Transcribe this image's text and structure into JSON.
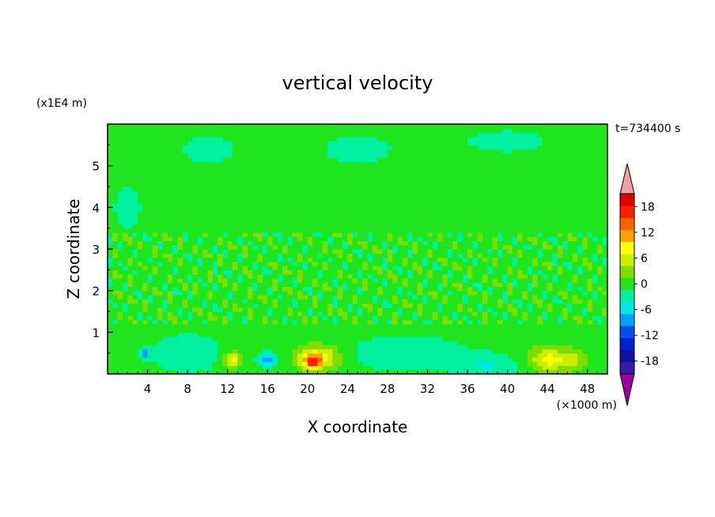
{
  "chart_data": {
    "type": "heatmap",
    "title": "vertical velocity",
    "xlabel": "X coordinate",
    "ylabel": "Z coordinate",
    "x_unit": "(×1000 m)",
    "y_unit": "(x1E4 m)",
    "time_label": "t=734400 s",
    "xlim": [
      0,
      50
    ],
    "ylim": [
      0,
      6
    ],
    "x_ticks": [
      4,
      8,
      12,
      16,
      20,
      24,
      28,
      32,
      36,
      40,
      44,
      48
    ],
    "y_ticks": [
      1,
      2,
      3,
      4,
      5
    ],
    "colorbar": {
      "levels": [
        -21,
        -18,
        -15,
        -12,
        -9,
        -6,
        -3,
        0,
        3,
        6,
        9,
        12,
        15,
        18,
        21
      ],
      "tick_labels": [
        "18",
        "12",
        "6",
        "0",
        "-6",
        "-12",
        "-18"
      ],
      "tick_values": [
        18,
        12,
        6,
        0,
        -6,
        -12,
        -18
      ],
      "colors": [
        "#3a1a9e",
        "#1010a0",
        "#0020d0",
        "#0050f0",
        "#00a0ff",
        "#00e6e6",
        "#00f0a0",
        "#20e620",
        "#7fdc00",
        "#c8f000",
        "#ffff00",
        "#ffa000",
        "#ff6000",
        "#ff2000",
        "#e00000"
      ],
      "under_color": "#a000a0",
      "over_color": "#f0a0a0"
    },
    "background_value": 1,
    "features": [
      {
        "x": 21,
        "z": 0.4,
        "value": 10,
        "sx": 2.2,
        "sz": 0.3
      },
      {
        "x": 20.5,
        "z": 0.3,
        "value": 13,
        "sx": 0.8,
        "sz": 0.15
      },
      {
        "x": 12.5,
        "z": 0.35,
        "value": 9,
        "sx": 1.0,
        "sz": 0.18
      },
      {
        "x": 44,
        "z": 0.35,
        "value": 9,
        "sx": 1.8,
        "sz": 0.3
      },
      {
        "x": 46.5,
        "z": 0.35,
        "value": 6,
        "sx": 1.4,
        "sz": 0.25
      },
      {
        "x": 16,
        "z": 0.35,
        "value": -10,
        "sx": 0.9,
        "sz": 0.15
      },
      {
        "x": 3.8,
        "z": 0.5,
        "value": -8,
        "sx": 0.5,
        "sz": 0.12
      },
      {
        "x": 8,
        "z": 0.5,
        "value": -4,
        "sx": 3.0,
        "sz": 0.4
      },
      {
        "x": 30,
        "z": 0.5,
        "value": -3,
        "sx": 6.0,
        "sz": 0.4
      },
      {
        "x": 38,
        "z": 0.2,
        "value": -4,
        "sx": 3.0,
        "sz": 0.25
      },
      {
        "x": 25,
        "z": 5.4,
        "value": -1.5,
        "sx": 5.0,
        "sz": 0.5
      },
      {
        "x": 10,
        "z": 5.4,
        "value": -1.5,
        "sx": 4.0,
        "sz": 0.5
      },
      {
        "x": 40,
        "z": 5.6,
        "value": -1.5,
        "sx": 6.0,
        "sz": 0.4
      },
      {
        "x": 2,
        "z": 4.0,
        "value": -1.5,
        "sx": 2.0,
        "sz": 0.8
      }
    ]
  }
}
